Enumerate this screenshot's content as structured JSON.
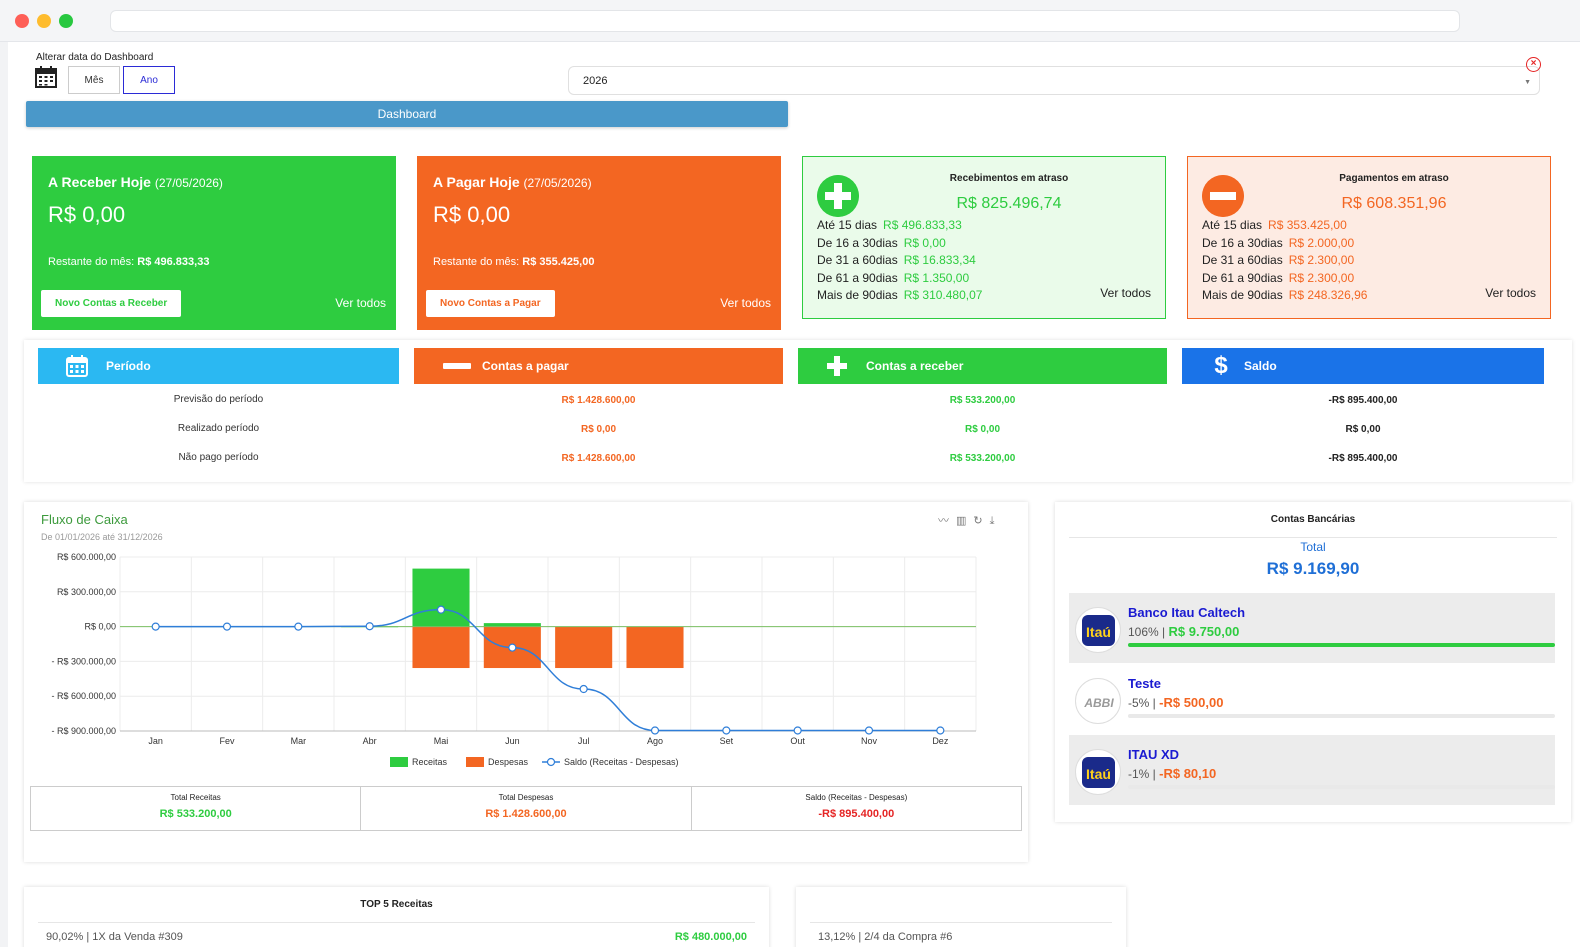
{
  "dashboard_date": {
    "label": "Alterar data do Dashboard",
    "mode_month": "Mês",
    "mode_year": "Ano",
    "selected_year": "2026"
  },
  "tab": {
    "label": "Dashboard"
  },
  "receive_today": {
    "title": "A Receber Hoje",
    "date": "(27/05/2026)",
    "amount": "R$ 0,00",
    "rest_label": "Restante do mês:",
    "rest_value": "R$ 496.833,33",
    "new_button": "Novo Contas a Receber",
    "see_all": "Ver todos"
  },
  "pay_today": {
    "title": "A Pagar Hoje",
    "date": "(27/05/2026)",
    "amount": "R$ 0,00",
    "rest_label": "Restante do mês:",
    "rest_value": "R$ 355.425,00",
    "new_button": "Novo Contas a Pagar",
    "see_all": "Ver todos"
  },
  "late_receipts": {
    "title": "Recebimentos em atraso",
    "amount": "R$ 825.496,74",
    "rows": [
      {
        "label": "Até 15 dias",
        "value": "R$ 496.833,33"
      },
      {
        "label": "De 16 a 30dias",
        "value": "R$ 0,00"
      },
      {
        "label": "De 31 a 60dias",
        "value": "R$ 16.833,34"
      },
      {
        "label": "De 61 a 90dias",
        "value": "R$ 1.350,00"
      },
      {
        "label": "Mais de 90dias",
        "value": "R$ 310.480,07"
      }
    ],
    "see_all": "Ver todos"
  },
  "late_payments": {
    "title": "Pagamentos em atraso",
    "amount": "R$ 608.351,96",
    "rows": [
      {
        "label": "Até 15 dias",
        "value": "R$ 353.425,00"
      },
      {
        "label": "De 16 a 30dias",
        "value": "R$ 2.000,00"
      },
      {
        "label": "De 31 a 60dias",
        "value": "R$ 2.300,00"
      },
      {
        "label": "De 61 a 90dias",
        "value": "R$ 2.300,00"
      },
      {
        "label": "Mais de 90dias",
        "value": "R$ 248.326,96"
      }
    ],
    "see_all": "Ver todos"
  },
  "period_table": {
    "headers": {
      "period": "Período",
      "payable": "Contas a pagar",
      "receivable": "Contas a receber",
      "balance": "Saldo"
    },
    "rows": [
      {
        "label": "Previsão do período",
        "payable": "R$ 1.428.600,00",
        "receivable": "R$ 533.200,00",
        "balance": "-R$ 895.400,00"
      },
      {
        "label": "Realizado período",
        "payable": "R$ 0,00",
        "receivable": "R$ 0,00",
        "balance": "R$ 0,00"
      },
      {
        "label": "Não pago período",
        "payable": "R$ 1.428.600,00",
        "receivable": "R$ 533.200,00",
        "balance": "-R$ 895.400,00"
      }
    ]
  },
  "cash_flow": {
    "title": "Fluxo de Caixa",
    "subtitle": "De 01/01/2026 até 31/12/2026",
    "totals": [
      {
        "label": "Total Receitas",
        "value": "R$ 533.200,00"
      },
      {
        "label": "Total Despesas",
        "value": "R$ 1.428.600,00"
      },
      {
        "label": "Saldo (Receitas - Despesas)",
        "value": "-R$ 895.400,00"
      }
    ]
  },
  "chart_data": {
    "type": "bar",
    "categories": [
      "Jan",
      "Fev",
      "Mar",
      "Abr",
      "Mai",
      "Jun",
      "Jul",
      "Ago",
      "Set",
      "Out",
      "Nov",
      "Dez"
    ],
    "y_tick_labels": [
      "R$ 600.000,00",
      "R$ 300.000,00",
      "R$ 0,00",
      "- R$ 300.000,00",
      "- R$ 600.000,00",
      "- R$ 900.000,00"
    ],
    "y_ticks": [
      600000,
      300000,
      0,
      -300000,
      -600000,
      -900000
    ],
    "ylim": [
      -900000,
      600000
    ],
    "series": [
      {
        "name": "Receitas",
        "type": "bar",
        "color": "#2ecc40",
        "values": [
          0,
          0,
          0,
          3200,
          500000,
          30000,
          0,
          0,
          0,
          0,
          0,
          0
        ]
      },
      {
        "name": "Despesas",
        "type": "bar",
        "color": "#f36622",
        "values": [
          0,
          0,
          0,
          0,
          -357150,
          -357150,
          -357150,
          -357150,
          0,
          0,
          0,
          0
        ]
      },
      {
        "name": "Saldo (Receitas - Despesas)",
        "type": "line",
        "color": "#2f7ed8",
        "values": [
          0,
          0,
          0,
          3200,
          146050,
          -181100,
          -538250,
          -895400,
          -895400,
          -895400,
          -895400,
          -895400
        ]
      }
    ],
    "legend_position": "bottom",
    "grid": true
  },
  "bank_accounts": {
    "title": "Contas Bancárias",
    "total_label": "Total",
    "total_value": "R$ 9.169,90",
    "accounts": [
      {
        "name": "Banco Itau Caltech",
        "percent": "106%",
        "value": "R$ 9.750,00",
        "share": 1.0,
        "logo_text": "Itaú"
      },
      {
        "name": "Teste",
        "percent": "-5%",
        "value": "-R$ 500,00",
        "share": 0,
        "logo_text": "ABBI"
      },
      {
        "name": "ITAU XD",
        "percent": "-1%",
        "value": "-R$ 80,10",
        "share": 0,
        "logo_text": "Itaú"
      }
    ]
  },
  "top5_income": {
    "title": "TOP 5 Receitas",
    "first_row_label": "90,02% | 1X da Venda #309",
    "first_row_value": "R$ 480.000,00"
  },
  "top5_expense": {
    "first_row_label": "13,12% | 2/4 da Compra #6"
  },
  "colors": {
    "green": "#2ecc40",
    "orange": "#f36622",
    "blue_header": "#1a73e8",
    "cyan_header": "#2bb8f2",
    "tab_blue": "#4a98c9"
  }
}
